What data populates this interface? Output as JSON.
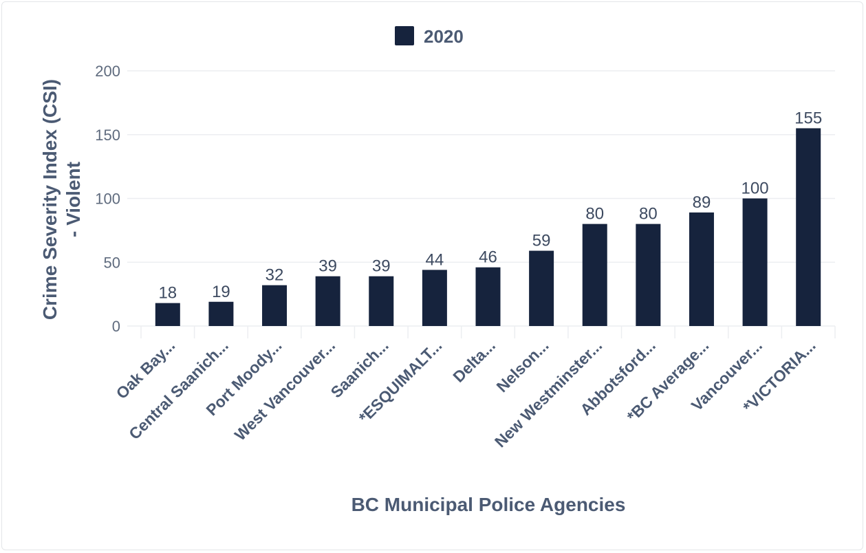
{
  "chart_data": {
    "type": "bar",
    "title": "",
    "xlabel": "BC Municipal Police Agencies",
    "ylabel_line1": "Crime Severity Index (CSI)",
    "ylabel_line2": "- Violent",
    "ylim": [
      0,
      200
    ],
    "yticks": [
      0,
      50,
      100,
      150,
      200
    ],
    "legend_position": "top-center",
    "categories": [
      "Oak Bay...",
      "Central Saanich...",
      "Port Moody...",
      "West Vancouver...",
      "Saanich...",
      "*ESQUIMALT...",
      "Delta...",
      "Nelson...",
      "New Westminster...",
      "Abbotsford...",
      "*BC Average...",
      "Vancouver...",
      "*VICTORIA..."
    ],
    "series": [
      {
        "name": "2020",
        "color": "#16233d",
        "values": [
          18,
          19,
          32,
          39,
          39,
          44,
          46,
          59,
          80,
          80,
          89,
          100,
          155
        ],
        "labels": [
          "18",
          "19",
          "32",
          "39",
          "39",
          "44",
          "46",
          "59",
          "80",
          "80",
          "89",
          "100",
          "155"
        ]
      }
    ]
  }
}
